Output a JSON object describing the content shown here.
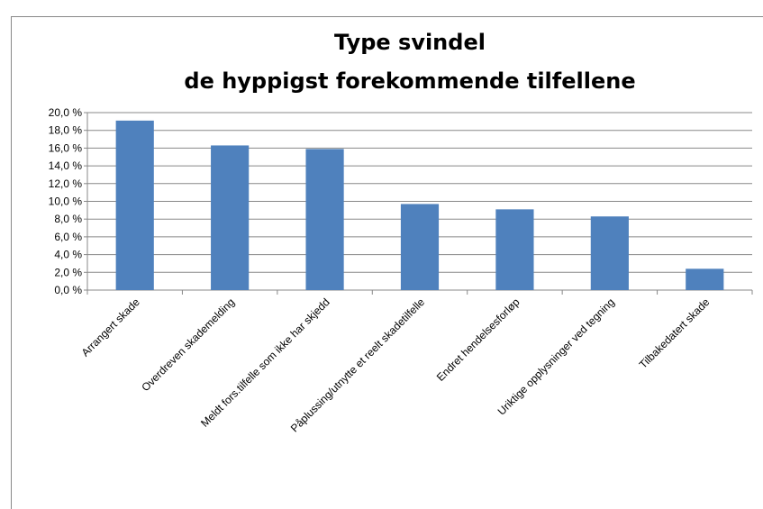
{
  "chart_data": {
    "type": "bar",
    "title": [
      "Type svindel",
      "de hyppigst forekommende tilfellene"
    ],
    "categories": [
      "Arrangert skade",
      "Overdreven skademelding",
      "Meldt fors.tilfelle som ikke har skjedd",
      "Påplussing/utnytte et reelt skadetilfelle",
      "Endret hendelsesforløp",
      "Uriktige opplysninger ved tegning",
      "Tilbakedatert skade"
    ],
    "values": [
      19.1,
      16.3,
      15.9,
      9.7,
      9.1,
      8.3,
      2.4
    ],
    "color": "#4f81bd",
    "ylim": [
      0,
      20
    ],
    "yticks": [
      {
        "value": 0,
        "label": "0,0 %"
      },
      {
        "value": 2,
        "label": "2,0 %"
      },
      {
        "value": 4,
        "label": "4,0 %"
      },
      {
        "value": 6,
        "label": "6,0 %"
      },
      {
        "value": 8,
        "label": "8,0 %"
      },
      {
        "value": 10,
        "label": "10,0 %"
      },
      {
        "value": 12,
        "label": "12,0 %"
      },
      {
        "value": 14,
        "label": "14,0 %"
      },
      {
        "value": 16,
        "label": "16,0 %"
      },
      {
        "value": 18,
        "label": "18,0 %"
      },
      {
        "value": 20,
        "label": "20,0 %"
      }
    ],
    "grid": true
  }
}
